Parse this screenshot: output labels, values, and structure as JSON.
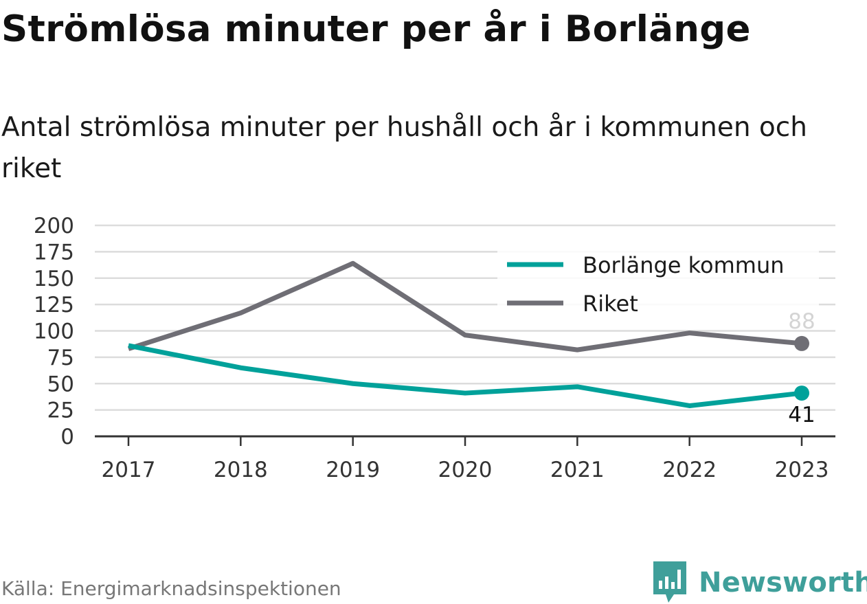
{
  "title": "Strömlösa minuter per år i Borlänge",
  "subtitle": "Antal strömlösa minuter per hushåll och år i kommunen och riket",
  "source": "Källa: Energimarknadsinspektionen",
  "brand": {
    "name": "Newsworthy",
    "color": "#3f9f9a"
  },
  "chart_data": {
    "type": "line",
    "x": [
      "2017",
      "2018",
      "2019",
      "2020",
      "2021",
      "2022",
      "2023"
    ],
    "series": [
      {
        "name": "Borlänge kommun",
        "color": "#00a19a",
        "values": [
          86,
          65,
          50,
          41,
          47,
          29,
          41
        ],
        "end_label": "41"
      },
      {
        "name": "Riket",
        "color": "#6f6e75",
        "values": [
          83,
          117,
          164,
          96,
          82,
          98,
          88
        ],
        "end_label": "88"
      }
    ],
    "ylim": [
      0,
      200
    ],
    "yticks": [
      "0",
      "25",
      "50",
      "75",
      "100",
      "125",
      "150",
      "175",
      "200"
    ],
    "grid": true,
    "legend": "top-right"
  }
}
